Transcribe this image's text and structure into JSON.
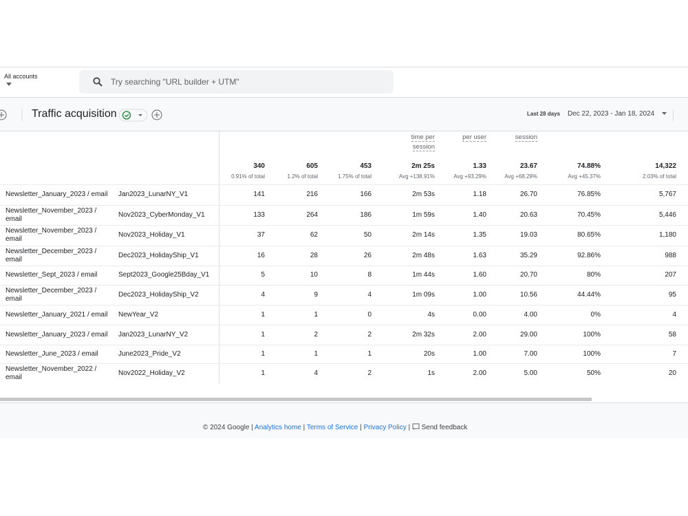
{
  "header": {
    "account_label": "All accounts",
    "search_placeholder": "Try searching \"URL builder + UTM\""
  },
  "toolbar": {
    "title": "Traffic acquisition",
    "date_label": "Last 28 days",
    "date_range": "Dec 22, 2023 - Jan 18, 2024"
  },
  "table": {
    "column_headers": [
      "time per session",
      "per user",
      "session"
    ],
    "totals": {
      "values": [
        "340",
        "605",
        "453",
        "2m 25s",
        "1.33",
        "23.67",
        "74.88%",
        "14,322"
      ],
      "subs": [
        "0.91% of total",
        "1.2% of total",
        "1.75% of total",
        "Avg +138.91%",
        "Avg +93.29%",
        "Avg +68.29%",
        "Avg +45.37%",
        "2.03% of total"
      ]
    },
    "rows": [
      [
        "Newsletter_January_2023 / email",
        "Jan2023_LunarNY_V1",
        "141",
        "216",
        "166",
        "2m 53s",
        "1.18",
        "26.70",
        "76.85%",
        "5,767"
      ],
      [
        "Newsletter_November_2023 / email",
        "Nov2023_CyberMonday_V1",
        "133",
        "264",
        "186",
        "1m 59s",
        "1.40",
        "20.63",
        "70.45%",
        "5,446"
      ],
      [
        "Newsletter_November_2023 / email",
        "Nov2023_Holiday_V1",
        "37",
        "62",
        "50",
        "2m 14s",
        "1.35",
        "19.03",
        "80.65%",
        "1,180"
      ],
      [
        "Newsletter_December_2023 / email",
        "Dec2023_HolidayShip_V1",
        "16",
        "28",
        "26",
        "2m 48s",
        "1.63",
        "35.29",
        "92.86%",
        "988"
      ],
      [
        "Newsletter_Sept_2023 / email",
        "Sept2023_Google25Bday_V1",
        "5",
        "10",
        "8",
        "1m 44s",
        "1.60",
        "20.70",
        "80%",
        "207"
      ],
      [
        "Newsletter_December_2023 / email",
        "Dec2023_HolidayShip_V2",
        "4",
        "9",
        "4",
        "1m 09s",
        "1.00",
        "10.56",
        "44.44%",
        "95"
      ],
      [
        "Newsletter_January_2021 / email",
        "NewYear_V2",
        "1",
        "1",
        "0",
        "4s",
        "0.00",
        "4.00",
        "0%",
        "4"
      ],
      [
        "Newsletter_January_2023 / email",
        "Jan2023_LunarNY_V2",
        "1",
        "2",
        "2",
        "2m 32s",
        "2.00",
        "29.00",
        "100%",
        "58"
      ],
      [
        "Newsletter_June_2023 / email",
        "June2023_Pride_V2",
        "1",
        "1",
        "1",
        "20s",
        "1.00",
        "7.00",
        "100%",
        "7"
      ],
      [
        "Newsletter_November_2022 / email",
        "Nov2022_Holiday_V2",
        "1",
        "4",
        "2",
        "1s",
        "2.00",
        "5.00",
        "50%",
        "20"
      ]
    ]
  },
  "footer": {
    "copyright": "© 2024 Google |",
    "links": [
      "Analytics home",
      "Terms of Service",
      "Privacy Policy"
    ],
    "feedback": "Send feedback"
  }
}
